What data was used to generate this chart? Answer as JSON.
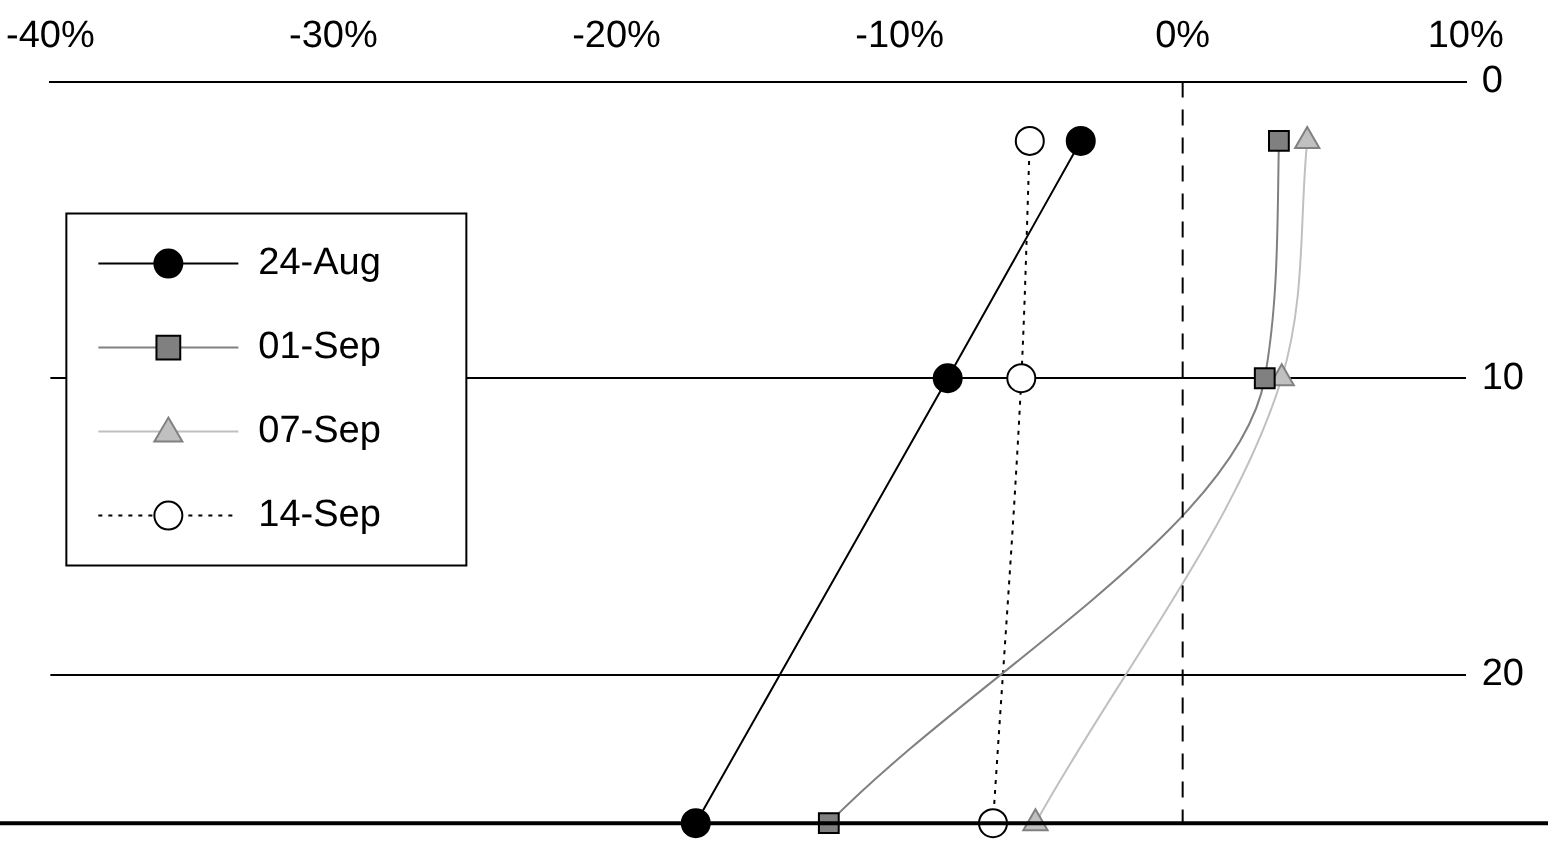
{
  "chart_data": {
    "type": "line",
    "series": [
      {
        "name": "24-Aug",
        "color": "#000000",
        "marker": "circle",
        "line_style": "solid",
        "x": [
          -3.6,
          -8.3,
          -17.2
        ],
        "values": [
          2,
          10,
          25
        ]
      },
      {
        "name": "01-Sep",
        "color": "#808080",
        "marker": "square",
        "line_style": "solid",
        "x": [
          3.4,
          2.9,
          -12.5
        ],
        "values": [
          2,
          10,
          25
        ]
      },
      {
        "name": "07-Sep",
        "color": "#c0c0c0",
        "marker": "triangle",
        "line_style": "solid",
        "x": [
          4.4,
          3.5,
          -5.2
        ],
        "values": [
          2,
          10,
          25
        ]
      },
      {
        "name": "14-Sep",
        "color": "#000000",
        "marker": "circle",
        "line_style": "dotted",
        "x": [
          -5.4,
          -5.7,
          -6.7
        ],
        "values": [
          2,
          10,
          25
        ]
      }
    ],
    "xlim": [
      -40,
      10
    ],
    "xticks": [
      {
        "value": -40,
        "label": "-40%"
      },
      {
        "value": -30,
        "label": "-30%"
      },
      {
        "value": -20,
        "label": "-20%"
      },
      {
        "value": -10,
        "label": "-10%"
      },
      {
        "value": 0,
        "label": "0%"
      },
      {
        "value": 10,
        "label": "10%"
      }
    ],
    "ylim": [
      25,
      0
    ],
    "yticks": [
      0,
      10,
      20
    ],
    "grid": "y",
    "legend": "top left",
    "ref_lines": [
      {
        "axis": "x",
        "value": 0,
        "line_style": "dashed",
        "color": "#000000"
      }
    ]
  }
}
